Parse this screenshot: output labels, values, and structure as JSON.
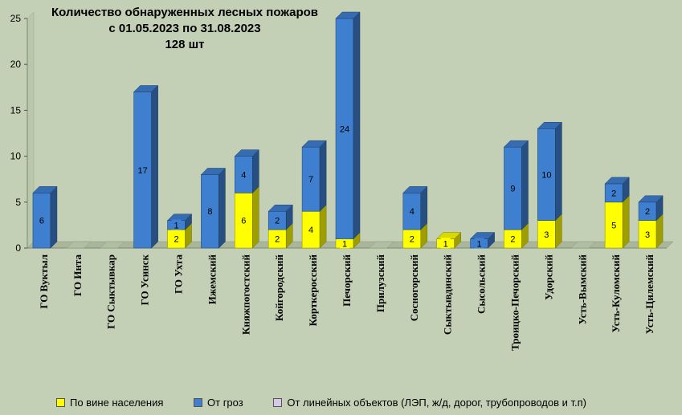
{
  "chart_data": {
    "type": "bar",
    "stacked": true,
    "title_lines": [
      "Количество обнаруженных лесных пожаров",
      "с 01.05.2023  по  31.08.2023",
      "128 шт"
    ],
    "categories": [
      "ГО Вуктыл",
      "ГО Инта",
      "ГО Сыктывкар",
      "ГО Усинск",
      "ГО Ухта",
      "Ижемский",
      "Княжпогостский",
      "Койгородский",
      "Корткеросский",
      "Печорский",
      "Прилузский",
      "Сосногорский",
      "Сыктывдинский",
      "Сысольский",
      "Троицко-Печорский",
      "Удорский",
      "Усть-Вымский",
      "Усть-Куломский",
      "Усть-Цилемский"
    ],
    "series": [
      {
        "name": "По вине населения",
        "color": "#ffff00",
        "values": [
          0,
          0,
          0,
          0,
          2,
          0,
          6,
          2,
          4,
          1,
          0,
          2,
          1,
          0,
          2,
          3,
          0,
          5,
          3
        ]
      },
      {
        "name": "От гроз",
        "color": "#3f7fd0",
        "values": [
          6,
          0,
          0,
          17,
          1,
          8,
          4,
          2,
          7,
          24,
          0,
          4,
          0,
          1,
          9,
          10,
          0,
          2,
          2
        ]
      },
      {
        "name": "От линейных объектов (ЛЭП, ж/д, дорог, трубопроводов  и т.п)",
        "color": "#d8c8e8",
        "values": [
          0,
          0,
          0,
          0,
          0,
          0,
          0,
          0,
          0,
          0,
          0,
          0,
          0,
          0,
          0,
          0,
          0,
          0,
          0
        ]
      }
    ],
    "yticks": [
      0,
      5,
      10,
      15,
      20,
      25
    ],
    "ylim": [
      0,
      25
    ],
    "legend_position": "bottom"
  }
}
